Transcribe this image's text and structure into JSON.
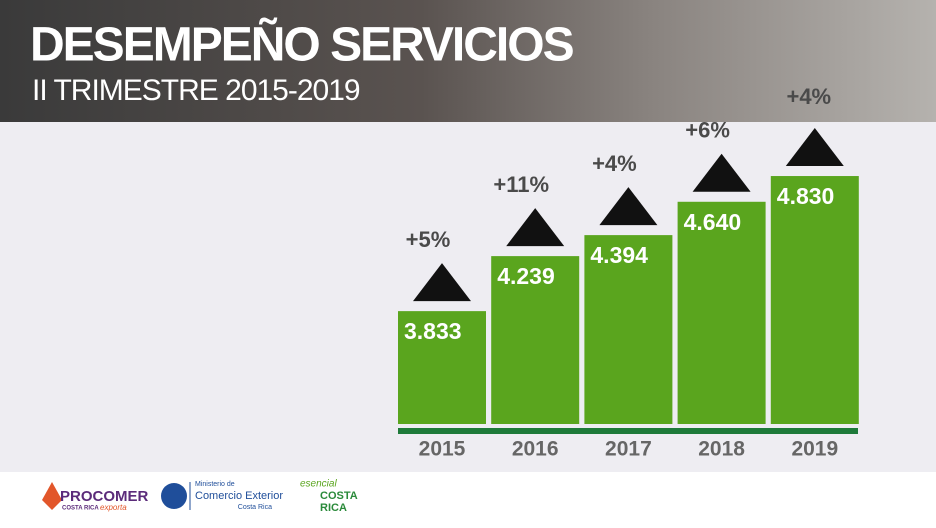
{
  "chart_data": {
    "type": "bar",
    "title": "DESEMPEÑO SERVICIOS",
    "subtitle": "II TRIMESTRE 2015-2019",
    "categories": [
      "2015",
      "2016",
      "2017",
      "2018",
      "2019"
    ],
    "values": [
      3.833,
      4.239,
      4.394,
      4.64,
      4.83
    ],
    "value_labels": [
      "3.833",
      "4.239",
      "4.394",
      "4.640",
      "4.830"
    ],
    "annotations": [
      "+5%",
      "+11%",
      "+4%",
      "+6%",
      "+4%"
    ],
    "color": "#5aa51e",
    "ylim": [
      3,
      5
    ]
  },
  "footer": {
    "procomer": "PROCOMER",
    "procomer_sub": "COSTA RICA",
    "procomer_tag": "exporta",
    "ministry_1": "Ministerio de",
    "ministry_2": "Comercio Exterior",
    "ministry_3": "Costa Rica",
    "brand_1": "esencial",
    "brand_2": "COSTA",
    "brand_3": "RICA"
  }
}
